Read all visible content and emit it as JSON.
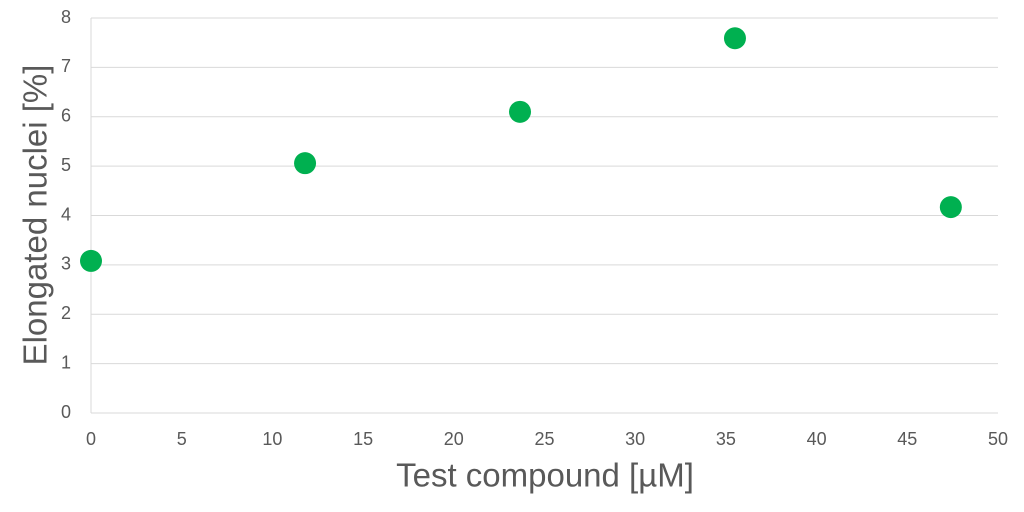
{
  "chart_data": {
    "type": "scatter",
    "x_label": "Test compound [µM]",
    "y_label": "Elongated nuclei [%]",
    "series": [
      {
        "color": "#00b050",
        "x": [
          0,
          11.8,
          23.65,
          35.5,
          47.4
        ],
        "values": [
          3.08,
          5.06,
          6.1,
          7.59,
          4.17
        ]
      }
    ],
    "xlim": [
      0,
      50
    ],
    "xticks": [
      0,
      5,
      10,
      15,
      20,
      25,
      30,
      35,
      40,
      45,
      50
    ],
    "ylim": [
      0,
      8
    ],
    "yticks": [
      0,
      1,
      2,
      3,
      4,
      5,
      6,
      7,
      8
    ],
    "grid": true
  }
}
